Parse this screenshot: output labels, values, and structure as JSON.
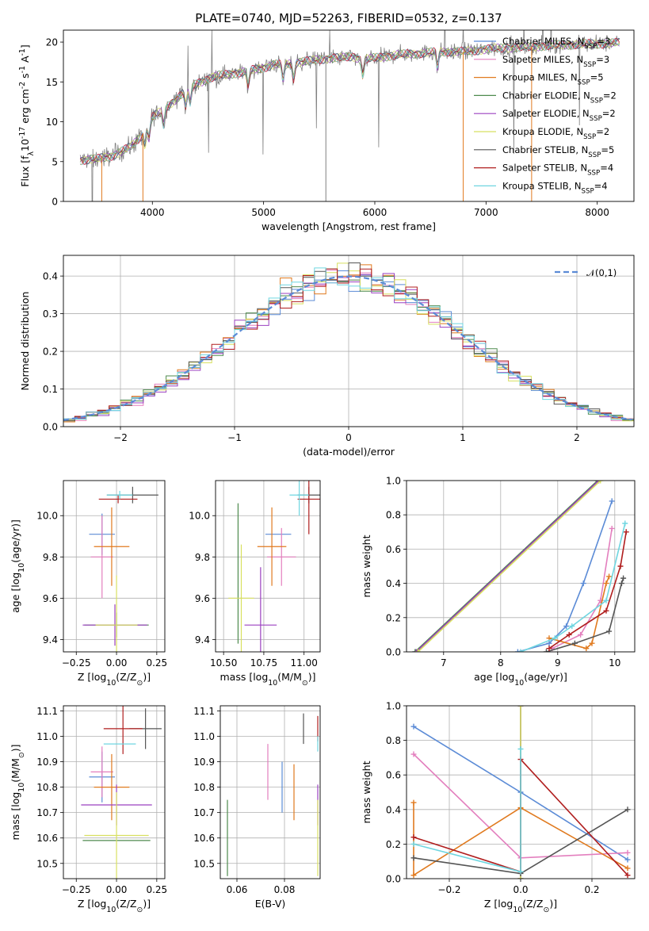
{
  "figure": {
    "title": "PLATE=0740, MJD=52263, FIBERID=0532, z=0.137"
  },
  "models": [
    {
      "name": "Chabrier MILES, N$_{SSP}$=3",
      "color": "#5b8bd6"
    },
    {
      "name": "Salpeter MILES, N$_{SSP}$=3",
      "color": "#e37fbe"
    },
    {
      "name": "Kroupa MILES, N$_{SSP}$=5",
      "color": "#e07a1f"
    },
    {
      "name": "Chabrier ELODIE, N$_{SSP}$=2",
      "color": "#4e8a4e"
    },
    {
      "name": "Salpeter ELODIE, N$_{SSP}$=2",
      "color": "#9b40c0"
    },
    {
      "name": "Kroupa ELODIE, N$_{SSP}$=2",
      "color": "#d8e060"
    },
    {
      "name": "Chabrier STELIB, N$_{SSP}$=5",
      "color": "#555555"
    },
    {
      "name": "Salpeter STELIB, N$_{SSP}$=4",
      "color": "#b01e1e"
    },
    {
      "name": "Kroupa STELIB, N$_{SSP}$=4",
      "color": "#6fd6e0"
    }
  ],
  "chart_data": [
    {
      "id": "spectrum",
      "type": "line",
      "xlabel": "wavelength [Angstrom, rest frame]",
      "ylabel": "Flux [f$_λ$10$^{-17}$ erg cm$^{-2}$ s$^{-1}$ A$^{-1}$]",
      "xlim": [
        3200,
        8330
      ],
      "ylim": [
        0,
        21.5
      ],
      "xticks": [
        4000,
        5000,
        6000,
        7000,
        8000
      ],
      "yticks": [
        0,
        5,
        10,
        15,
        20
      ],
      "continuum": {
        "x": [
          3350,
          3500,
          3650,
          3800,
          3900,
          3950,
          4000,
          4100,
          4200,
          4300,
          4400,
          4500,
          4600,
          4700,
          4800,
          4900,
          5000,
          5100,
          5200,
          5300,
          5400,
          5500,
          5600,
          5700,
          5800,
          5900,
          6000,
          6200,
          6400,
          6600,
          6800,
          7000,
          7200,
          7400,
          7600,
          7800,
          8000,
          8200
        ],
        "y": [
          5.2,
          5.3,
          5.8,
          6.8,
          8.2,
          9.5,
          10.6,
          11.5,
          12.7,
          13.9,
          14.8,
          15.4,
          15.8,
          16.0,
          16.2,
          16.5,
          16.8,
          17.2,
          17.2,
          17.5,
          17.6,
          17.8,
          18.0,
          18.0,
          18.2,
          17.8,
          18.0,
          18.4,
          18.6,
          18.8,
          18.8,
          19.1,
          19.3,
          19.4,
          19.6,
          19.7,
          19.8,
          19.9
        ]
      }
    },
    {
      "id": "residuals",
      "type": "bar",
      "xlabel": "(data-model)/error",
      "ylabel": "Normed distribution",
      "xlim": [
        -2.5,
        2.5
      ],
      "ylim": [
        0,
        0.455
      ],
      "xticks": [
        -2,
        -1,
        0,
        1,
        2
      ],
      "yticks": [
        0.0,
        0.1,
        0.2,
        0.3,
        0.4
      ],
      "legend": "$\\mathcal{N}(0,1)$",
      "bin_edges": [
        -2.5,
        2.5
      ],
      "nbins": 50,
      "sigma": 1.0,
      "peak": 0.399
    },
    {
      "id": "age_vs_Z",
      "type": "scatter",
      "xlabel": "Z [log$_{10}$(Z/Z$_⊙$)]",
      "ylabel": "age  [log$_{10}$(age/yr)]",
      "xlim": [
        -0.33,
        0.3
      ],
      "ylim": [
        9.34,
        10.17
      ],
      "xticks": [
        -0.25,
        0.0,
        0.25
      ],
      "yticks": [
        9.4,
        9.6,
        9.8,
        10.0
      ],
      "points": [
        {
          "x": -0.09,
          "xerr": 0.08,
          "y": 9.91,
          "yerr": 0.1
        },
        {
          "x": -0.09,
          "xerr": 0.07,
          "y": 9.8,
          "yerr": 0.2
        },
        {
          "x": -0.03,
          "xerr": 0.11,
          "y": 9.85,
          "yerr": 0.19
        },
        {
          "x": 0.0,
          "xerr": 0.2,
          "y": 9.47,
          "yerr": 0.06
        },
        {
          "x": -0.01,
          "xerr": 0.2,
          "y": 9.47,
          "yerr": 0.1
        },
        {
          "x": 0.0,
          "xerr": 0.13,
          "y": 9.47,
          "yerr": 0.24
        },
        {
          "x": 0.1,
          "xerr": 0.16,
          "y": 10.1,
          "yerr": 0.04
        },
        {
          "x": 0.01,
          "xerr": 0.12,
          "y": 10.08,
          "yerr": 0.02
        },
        {
          "x": 0.02,
          "xerr": 0.08,
          "y": 10.1,
          "yerr": 0.02
        }
      ]
    },
    {
      "id": "age_vs_mass",
      "type": "scatter",
      "xlabel": "mass [log$_{10}$(M/M$_⊙$)]",
      "ylabel": "",
      "xlim": [
        10.45,
        11.1
      ],
      "ylim": [
        9.34,
        10.17
      ],
      "xticks": [
        10.5,
        10.75,
        11.0
      ],
      "yticks": [
        9.4,
        9.6,
        9.8,
        10.0
      ],
      "points": [
        {
          "x": 10.84,
          "xerr": 0.08,
          "y": 9.91,
          "yerr": 0.0
        },
        {
          "x": 10.86,
          "xerr": 0.09,
          "y": 9.8,
          "yerr": 0.14
        },
        {
          "x": 10.8,
          "xerr": 0.09,
          "y": 9.85,
          "yerr": 0.19
        },
        {
          "x": 10.59,
          "xerr": 0.0,
          "y": 9.72,
          "yerr": 0.34
        },
        {
          "x": 10.73,
          "xerr": 0.1,
          "y": 9.47,
          "yerr": 0.28
        },
        {
          "x": 10.61,
          "xerr": 0.08,
          "y": 9.6,
          "yerr": 0.26
        },
        {
          "x": 11.03,
          "xerr": 0.07,
          "y": 10.1,
          "yerr": 0.04
        },
        {
          "x": 11.03,
          "xerr": 0.07,
          "y": 10.08,
          "yerr": 0.17
        },
        {
          "x": 10.97,
          "xerr": 0.06,
          "y": 10.1,
          "yerr": 0.1
        }
      ]
    },
    {
      "id": "weight_vs_age",
      "type": "line",
      "xlabel": "age  [log$_{10}$(age/yr)]",
      "ylabel": "mass weight",
      "xlim": [
        6.35,
        10.35
      ],
      "ylim": [
        0.0,
        1.0
      ],
      "xticks": [
        7,
        8,
        9,
        10
      ],
      "yticks": [
        0.0,
        0.2,
        0.4,
        0.6,
        0.8,
        1.0
      ],
      "series": [
        {
          "x": [
            8.3,
            8.85,
            9.15,
            9.45,
            9.95
          ],
          "y": [
            0.0,
            0.05,
            0.15,
            0.4,
            0.88
          ]
        },
        {
          "x": [
            8.9,
            9.4,
            9.75,
            9.95
          ],
          "y": [
            0.02,
            0.1,
            0.3,
            0.72
          ]
        },
        {
          "x": [
            8.85,
            9.5,
            9.6,
            9.85,
            9.9
          ],
          "y": [
            0.08,
            0.02,
            0.05,
            0.4,
            0.44
          ]
        },
        {
          "x": [
            6.5,
            9.7
          ],
          "y": [
            0.0,
            1.0
          ]
        },
        {
          "x": [
            6.52,
            9.72
          ],
          "y": [
            0.0,
            1.0
          ]
        },
        {
          "x": [
            6.55,
            9.75
          ],
          "y": [
            0.0,
            1.0
          ]
        },
        {
          "x": [
            8.8,
            9.3,
            9.9,
            10.12,
            10.15
          ],
          "y": [
            0.0,
            0.05,
            0.12,
            0.4,
            0.43
          ]
        },
        {
          "x": [
            8.85,
            9.2,
            9.85,
            10.1,
            10.2
          ],
          "y": [
            0.02,
            0.1,
            0.24,
            0.5,
            0.7
          ]
        },
        {
          "x": [
            8.35,
            8.95,
            9.25,
            9.85,
            10.18
          ],
          "y": [
            0.0,
            0.08,
            0.15,
            0.3,
            0.75
          ]
        }
      ]
    },
    {
      "id": "mass_vs_Z",
      "type": "scatter",
      "xlabel": "Z [log$_{10}$(Z/Z$_⊙$)]",
      "ylabel": "mass [log$_{10}$(M/M$_⊙$)]",
      "xlim": [
        -0.33,
        0.3
      ],
      "ylim": [
        10.44,
        11.12
      ],
      "xticks": [
        -0.25,
        0.0,
        0.25
      ],
      "yticks": [
        10.5,
        10.6,
        10.7,
        10.8,
        10.9,
        11.0,
        11.1
      ],
      "points": [
        {
          "x": -0.09,
          "xerr": 0.08,
          "y": 10.84,
          "yerr": 0.1
        },
        {
          "x": -0.09,
          "xerr": 0.07,
          "y": 10.86,
          "yerr": 0.1
        },
        {
          "x": -0.03,
          "xerr": 0.11,
          "y": 10.8,
          "yerr": 0.13
        },
        {
          "x": 0.0,
          "xerr": 0.21,
          "y": 10.59,
          "yerr": 0.0
        },
        {
          "x": 0.0,
          "xerr": 0.22,
          "y": 10.73,
          "yerr": 0.08
        },
        {
          "x": 0.0,
          "xerr": 0.2,
          "y": 10.61,
          "yerr": 0.17
        },
        {
          "x": 0.18,
          "xerr": 0.1,
          "y": 11.03,
          "yerr": 0.08
        },
        {
          "x": 0.04,
          "xerr": 0.12,
          "y": 11.03,
          "yerr": 0.1
        },
        {
          "x": 0.02,
          "xerr": 0.1,
          "y": 10.97,
          "yerr": 0.0
        }
      ]
    },
    {
      "id": "mass_vs_ebv",
      "type": "scatter",
      "xlabel": "E(B-V)",
      "ylabel": "",
      "xlim": [
        0.053,
        0.095
      ],
      "ylim": [
        10.44,
        11.12
      ],
      "xticks": [
        0.06,
        0.08
      ],
      "yticks": [
        10.5,
        10.6,
        10.7,
        10.8,
        10.9,
        11.0,
        11.1
      ],
      "points": [
        {
          "x": 0.079,
          "xerr": 0.0,
          "y": 10.8,
          "yerr": 0.1
        },
        {
          "x": 0.073,
          "xerr": 0.0,
          "y": 10.86,
          "yerr": 0.11
        },
        {
          "x": 0.084,
          "xerr": 0.0,
          "y": 10.78,
          "yerr": 0.11
        },
        {
          "x": 0.056,
          "xerr": 0.0,
          "y": 10.6,
          "yerr": 0.15
        },
        {
          "x": 0.094,
          "xerr": 0.0,
          "y": 10.73,
          "yerr": 0.08
        },
        {
          "x": 0.094,
          "xerr": 0.0,
          "y": 10.6,
          "yerr": 0.15
        },
        {
          "x": 0.088,
          "xerr": 0.0,
          "y": 11.03,
          "yerr": 0.06
        },
        {
          "x": 0.094,
          "xerr": 0.0,
          "y": 11.03,
          "yerr": 0.05
        },
        {
          "x": 0.094,
          "xerr": 0.0,
          "y": 10.97,
          "yerr": 0.03
        }
      ]
    },
    {
      "id": "weight_vs_Z",
      "type": "line",
      "xlabel": "Z [log$_{10}$(Z/Z$_⊙$)]",
      "ylabel": "mass weight",
      "xlim": [
        -0.32,
        0.32
      ],
      "ylim": [
        0.0,
        1.0
      ],
      "xticks": [
        -0.2,
        0.0,
        0.2
      ],
      "yticks": [
        0.0,
        0.2,
        0.4,
        0.6,
        0.8,
        1.0
      ],
      "series": [
        {
          "x": [
            -0.3,
            0.0,
            0.3
          ],
          "y": [
            0.88,
            0.5,
            0.11
          ]
        },
        {
          "x": [
            -0.3,
            0.0,
            0.3
          ],
          "y": [
            0.72,
            0.12,
            0.15
          ]
        },
        {
          "x": [
            -0.3,
            -0.3,
            0.0,
            0.3
          ],
          "y": [
            0.44,
            0.02,
            0.41,
            0.06
          ]
        },
        {
          "x": [
            0.0,
            0.0
          ],
          "y": [
            0.0,
            1.0
          ]
        },
        {
          "x": [
            0.0,
            0.0
          ],
          "y": [
            0.0,
            1.0
          ]
        },
        {
          "x": [
            0.0,
            0.0
          ],
          "y": [
            0.0,
            1.0
          ]
        },
        {
          "x": [
            -0.3,
            0.0,
            0.3
          ],
          "y": [
            0.12,
            0.03,
            0.4
          ]
        },
        {
          "x": [
            -0.3,
            0.0,
            0.0,
            0.3
          ],
          "y": [
            0.24,
            0.04,
            0.69,
            0.02
          ]
        },
        {
          "x": [
            -0.3,
            0.0,
            0.0
          ],
          "y": [
            0.2,
            0.04,
            0.75
          ]
        }
      ]
    }
  ]
}
